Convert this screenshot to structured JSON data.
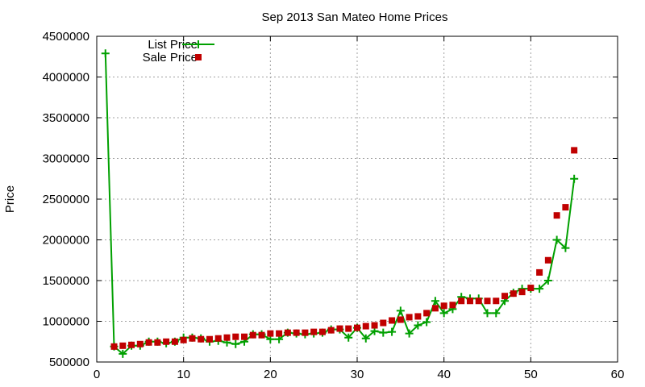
{
  "chart_data": {
    "type": "line",
    "title": "Sep 2013 San Mateo Home Prices",
    "xlabel": "",
    "ylabel": "Price",
    "xlim": [
      0,
      60
    ],
    "ylim": [
      500000,
      4500000
    ],
    "x_ticks": [
      0,
      10,
      20,
      30,
      40,
      50,
      60
    ],
    "y_ticks": [
      500000,
      1000000,
      1500000,
      2000000,
      2500000,
      3000000,
      3500000,
      4000000,
      4500000
    ],
    "grid": true,
    "legend_position": "top-left",
    "series": [
      {
        "name": "List Price",
        "style": "line+plus",
        "color": "#00a000",
        "x": [
          1,
          2,
          3,
          4,
          5,
          6,
          7,
          8,
          9,
          10,
          11,
          12,
          13,
          14,
          15,
          16,
          17,
          18,
          19,
          20,
          21,
          22,
          23,
          24,
          25,
          26,
          27,
          28,
          29,
          30,
          31,
          32,
          33,
          34,
          35,
          36,
          37,
          38,
          39,
          40,
          41,
          42,
          43,
          44,
          45,
          46,
          47,
          48,
          49,
          50,
          51,
          52,
          53,
          54,
          55
        ],
        "y": [
          4290000,
          690000,
          600000,
          700000,
          700000,
          750000,
          750000,
          730000,
          750000,
          800000,
          800000,
          790000,
          750000,
          760000,
          740000,
          720000,
          750000,
          840000,
          840000,
          780000,
          780000,
          860000,
          850000,
          840000,
          850000,
          860000,
          900000,
          900000,
          800000,
          920000,
          790000,
          880000,
          860000,
          870000,
          1130000,
          850000,
          950000,
          990000,
          1250000,
          1100000,
          1150000,
          1300000,
          1280000,
          1280000,
          1100000,
          1100000,
          1250000,
          1350000,
          1400000,
          1400000,
          1400000,
          1500000,
          2000000,
          1900000,
          2750000
        ]
      },
      {
        "name": "Sale Price",
        "style": "square",
        "color": "#c00000",
        "x": [
          2,
          3,
          4,
          5,
          6,
          7,
          8,
          9,
          10,
          11,
          12,
          13,
          14,
          15,
          16,
          17,
          18,
          19,
          20,
          21,
          22,
          23,
          24,
          25,
          26,
          27,
          28,
          29,
          30,
          31,
          32,
          33,
          34,
          35,
          36,
          37,
          38,
          39,
          40,
          41,
          42,
          43,
          44,
          45,
          46,
          47,
          48,
          49,
          50,
          51,
          52,
          53,
          54,
          55
        ],
        "y": [
          690000,
          700000,
          710000,
          720000,
          740000,
          740000,
          750000,
          750000,
          770000,
          790000,
          780000,
          780000,
          790000,
          800000,
          810000,
          810000,
          830000,
          830000,
          850000,
          850000,
          860000,
          860000,
          860000,
          870000,
          870000,
          890000,
          910000,
          910000,
          920000,
          940000,
          950000,
          980000,
          1010000,
          1020000,
          1050000,
          1060000,
          1100000,
          1160000,
          1190000,
          1200000,
          1250000,
          1250000,
          1250000,
          1250000,
          1250000,
          1310000,
          1340000,
          1360000,
          1410000,
          1600000,
          1750000,
          2300000,
          2400000,
          3100000
        ]
      }
    ]
  }
}
